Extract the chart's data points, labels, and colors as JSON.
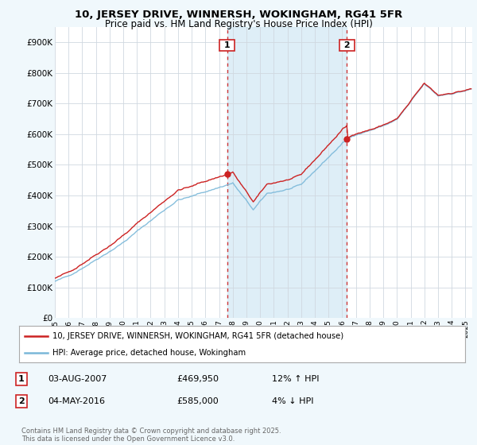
{
  "title": "10, JERSEY DRIVE, WINNERSH, WOKINGHAM, RG41 5FR",
  "subtitle": "Price paid vs. HM Land Registry's House Price Index (HPI)",
  "legend_line1": "10, JERSEY DRIVE, WINNERSH, WOKINGHAM, RG41 5FR (detached house)",
  "legend_line2": "HPI: Average price, detached house, Wokingham",
  "annotation1_label": "1",
  "annotation1_date": "03-AUG-2007",
  "annotation1_price": "£469,950",
  "annotation1_hpi": "12% ↑ HPI",
  "annotation2_label": "2",
  "annotation2_date": "04-MAY-2016",
  "annotation2_price": "£585,000",
  "annotation2_hpi": "4% ↓ HPI",
  "footer": "Contains HM Land Registry data © Crown copyright and database right 2025.\nThis data is licensed under the Open Government Licence v3.0.",
  "sale1_year": 2007.59,
  "sale1_price": 469950,
  "sale2_year": 2016.34,
  "sale2_price": 585000,
  "hpi_color": "#7ab8d9",
  "sold_color": "#cc2222",
  "vline_color": "#cc2222",
  "shade_color": "#d0e8f5",
  "background_color": "#f0f8fc",
  "plot_bg": "#ffffff",
  "ylim": [
    0,
    950000
  ],
  "ytick_step": 100000,
  "xmin": 1995,
  "xmax": 2025.5
}
